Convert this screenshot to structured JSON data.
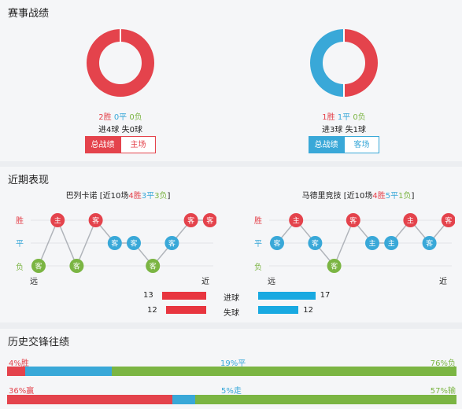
{
  "sections": {
    "record": "赛事战绩",
    "recent": "近期表现",
    "history": "历史交锋往绩"
  },
  "colors": {
    "win": "#e4434c",
    "draw": "#39a8d8",
    "loss": "#7bb543",
    "home_bar": "#e8353f",
    "away_bar": "#18a9e1"
  },
  "record": {
    "left": {
      "win": "2胜",
      "draw": "0平",
      "loss": "0负",
      "goals": "进4球  失0球",
      "pie": {
        "win": 2,
        "draw": 0,
        "loss": 0
      },
      "tabs": [
        "总战绩",
        "主场"
      ],
      "active_tab": 0
    },
    "right": {
      "win": "1胜",
      "draw": "1平",
      "loss": "0负",
      "goals": "进3球  失1球",
      "pie": {
        "win": 1,
        "draw": 1,
        "loss": 0
      },
      "tabs": [
        "总战绩",
        "客场"
      ],
      "active_tab": 0
    }
  },
  "recent": {
    "left": {
      "team": "巴列卡诺",
      "summary_prefix": "[近10场",
      "win": "4胜",
      "draw": "3平",
      "loss": "3负",
      "summary_suffix": "]",
      "matches": [
        {
          "res": "L",
          "venue": "客"
        },
        {
          "res": "W",
          "venue": "主"
        },
        {
          "res": "L",
          "venue": "客"
        },
        {
          "res": "W",
          "venue": "客"
        },
        {
          "res": "D",
          "venue": "客"
        },
        {
          "res": "D",
          "venue": "客"
        },
        {
          "res": "L",
          "venue": "客"
        },
        {
          "res": "D",
          "venue": "客"
        },
        {
          "res": "W",
          "venue": "客"
        },
        {
          "res": "W",
          "venue": "客"
        }
      ],
      "far": "远",
      "near": "近"
    },
    "right": {
      "team": "马德里竞技",
      "summary_prefix": "[近10场",
      "win": "4胜",
      "draw": "5平",
      "loss": "1负",
      "summary_suffix": "]",
      "matches": [
        {
          "res": "D",
          "venue": "客"
        },
        {
          "res": "W",
          "venue": "主"
        },
        {
          "res": "D",
          "venue": "客"
        },
        {
          "res": "L",
          "venue": "客"
        },
        {
          "res": "W",
          "venue": "客"
        },
        {
          "res": "D",
          "venue": "主"
        },
        {
          "res": "D",
          "venue": "主"
        },
        {
          "res": "W",
          "venue": "主"
        },
        {
          "res": "D",
          "venue": "客"
        },
        {
          "res": "W",
          "venue": "客"
        }
      ],
      "far": "远",
      "near": "近"
    },
    "row_labels": {
      "win": "胜",
      "draw": "平",
      "loss": "负"
    },
    "goals": {
      "label": "进球",
      "left": 13,
      "right": 17
    },
    "conceded": {
      "label": "失球",
      "left": 12,
      "right": 12
    }
  },
  "history": {
    "row1": {
      "win": "4%胜",
      "draw": "19%平",
      "loss": "76%负",
      "win_pct": 4,
      "draw_pct": 19,
      "loss_pct": 76
    },
    "row2": {
      "win": "36%赢",
      "draw": "5%走",
      "loss": "57%输",
      "win_pct": 36,
      "draw_pct": 5,
      "loss_pct": 57
    }
  }
}
